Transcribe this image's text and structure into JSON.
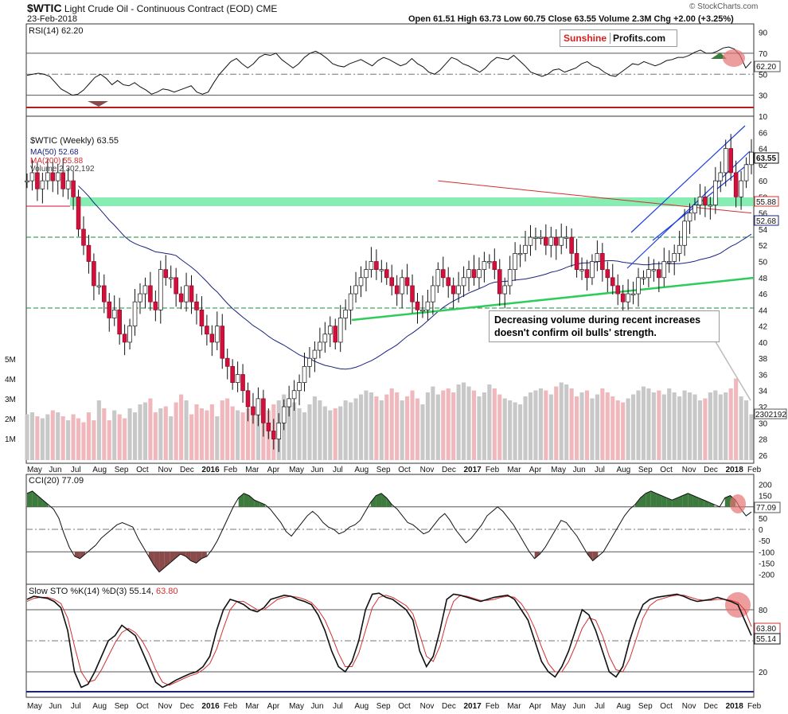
{
  "header": {
    "symbol": "$WTIC",
    "name": "Light Crude Oil - Continuous Contract (EOD)",
    "exchange": "CME",
    "date": "23-Feb-2018",
    "ohlc": "Open 61.51  High 63.73  Low 60.75  Close 63.55  Volume 2.3M  Chg +2.00 (+3.25%)",
    "copyright": "© StockCharts.com"
  },
  "logo": {
    "part1": "Sunshine",
    "part2": "Profits.com"
  },
  "note": {
    "line1": "Decreasing volume during recent increases",
    "line2": "doesn't confirm oil bulls' strength."
  },
  "x_labels": [
    "May",
    "Jun",
    "Jul",
    "Aug",
    "Sep",
    "Oct",
    "Nov",
    "Dec",
    "2016",
    "Feb",
    "Mar",
    "Apr",
    "May",
    "Jun",
    "Jul",
    "Aug",
    "Sep",
    "Oct",
    "Nov",
    "Dec",
    "2017",
    "Feb",
    "Mar",
    "Apr",
    "May",
    "Jun",
    "Jul",
    "Aug",
    "Sep",
    "Oct",
    "Nov",
    "Dec",
    "2018",
    "Feb"
  ],
  "colors": {
    "up": "#ffffff",
    "down": "#d40f3c",
    "ma50": "#1a237e",
    "ma200": "#d32f2f",
    "zone": "#5fe89a",
    "channel": "#1c3fe0",
    "support": "#2ecc5a",
    "oscRed": "#e07070",
    "cciGreen": "#3d7a3d",
    "cciBrown": "#8b4a4a"
  },
  "chart_data": [
    {
      "type": "line",
      "title": "RSI(14) 62.20",
      "y_ticks": [
        90,
        70,
        50,
        30,
        10
      ],
      "ylim": [
        10,
        98
      ],
      "levels": [
        70,
        50,
        30
      ],
      "last_value_label": "62.20",
      "values": [
        49,
        50,
        51,
        50,
        48,
        42,
        36,
        33,
        30,
        31,
        35,
        41,
        47,
        50,
        46,
        40,
        44,
        40,
        39,
        42,
        38,
        35,
        31,
        33,
        36,
        35,
        33,
        35,
        37,
        39,
        33,
        31,
        33,
        42,
        50,
        56,
        62,
        65,
        60,
        56,
        60,
        66,
        69,
        68,
        70,
        64,
        60,
        56,
        60,
        66,
        70,
        72,
        69,
        65,
        60,
        58,
        57,
        60,
        62,
        64,
        61,
        58,
        63,
        66,
        64,
        61,
        58,
        60,
        65,
        60,
        57,
        52,
        50,
        54,
        60,
        66,
        64,
        60,
        58,
        55,
        52,
        56,
        62,
        66,
        65,
        64,
        68,
        63,
        58,
        52,
        50,
        48,
        50,
        54,
        55,
        52,
        54,
        56,
        60,
        62,
        58,
        56,
        52,
        49,
        48,
        52,
        56,
        60,
        59,
        62,
        60,
        58,
        60,
        63,
        64,
        66,
        66,
        68,
        71,
        73,
        70,
        70,
        72,
        75,
        76,
        74,
        68,
        56,
        62
      ]
    },
    {
      "type": "candlestick",
      "title": "$WTIC (Weekly) 63.55",
      "legend": [
        "$WTIC (Weekly) 63.55",
        "MA(50) 52.68",
        "MA(200) 55.88",
        "Volume 2,302,192"
      ],
      "y_ticks": [
        66,
        64,
        62,
        60,
        58,
        56,
        54,
        52,
        50,
        48,
        46,
        44,
        42,
        40,
        38,
        36,
        34,
        32,
        30,
        28,
        26
      ],
      "ylim": [
        25,
        68
      ],
      "last_price_label": "63.55",
      "ma200_label": "55.88",
      "ma50_label": "52.68",
      "volume_label": "2302192",
      "volume_axis": [
        "5M",
        "4M",
        "3M",
        "2M",
        "1M"
      ],
      "resistance_zone": [
        54.3,
        55.8
      ],
      "dashed_levels": [
        49.8,
        40.3
      ],
      "weekly_close": [
        60,
        61,
        59,
        60,
        61,
        60,
        61,
        59,
        60,
        58,
        54,
        52,
        50,
        47,
        47,
        45,
        43,
        44,
        41,
        40,
        42,
        45,
        46,
        47,
        45,
        44,
        49,
        48,
        48,
        46,
        45,
        47,
        45,
        44,
        42,
        41,
        40,
        42,
        38,
        37,
        35,
        36,
        34,
        32,
        31,
        33,
        30,
        29,
        28,
        30,
        32,
        33,
        34,
        35,
        37,
        38,
        39,
        40,
        41,
        42,
        40,
        43,
        44,
        46,
        47,
        48,
        49,
        50,
        49,
        49,
        48,
        47,
        46,
        48,
        47,
        45,
        44,
        44,
        45,
        47,
        49,
        48,
        47,
        46,
        47,
        48,
        49,
        48,
        49,
        50,
        50,
        49,
        46,
        47,
        49,
        51,
        51,
        52,
        53,
        53,
        53,
        52,
        53,
        52,
        53,
        53,
        51,
        49,
        49,
        48,
        50,
        51,
        49,
        48,
        47,
        46,
        45,
        46,
        46,
        48,
        48,
        49,
        49,
        48,
        50,
        50,
        51,
        52,
        55,
        56,
        57,
        58,
        57,
        57,
        60,
        61,
        64,
        61,
        58,
        60,
        62,
        63.55
      ],
      "volume": [
        2.3,
        2.4,
        2.2,
        2.1,
        2.3,
        2.5,
        2.4,
        2.2,
        2.0,
        2.3,
        2.1,
        1.9,
        2.4,
        2.0,
        3.0,
        2.6,
        2.0,
        2.5,
        2.3,
        2.1,
        2.6,
        2.4,
        2.8,
        2.9,
        3.1,
        2.4,
        2.6,
        2.7,
        2.2,
        2.9,
        3.3,
        3.0,
        2.3,
        2.8,
        2.6,
        2.5,
        2.8,
        2.2,
        3.0,
        3.1,
        2.7,
        2.5,
        2.4,
        2.6,
        2.7,
        2.3,
        2.2,
        2.5,
        2.8,
        3.0,
        3.3,
        3.1,
        2.9,
        2.6,
        2.4,
        2.8,
        3.2,
        3.0,
        2.7,
        2.5,
        2.6,
        2.7,
        3.0,
        2.9,
        3.1,
        3.3,
        3.5,
        3.4,
        3.2,
        3.0,
        3.3,
        3.6,
        3.4,
        3.0,
        3.2,
        3.5,
        3.1,
        2.8,
        3.4,
        3.7,
        3.3,
        3.5,
        3.6,
        3.4,
        3.8,
        3.9,
        3.7,
        3.5,
        3.2,
        3.4,
        3.8,
        3.6,
        3.3,
        3.1,
        3.0,
        2.9,
        2.8,
        3.2,
        3.4,
        3.5,
        3.6,
        3.5,
        3.3,
        3.7,
        3.9,
        3.8,
        3.6,
        3.2,
        3.4,
        3.5,
        3.1,
        3.3,
        3.6,
        3.4,
        3.2,
        3.0,
        2.9,
        3.1,
        3.3,
        3.5,
        3.7,
        3.6,
        3.4,
        3.5,
        3.3,
        3.6,
        3.4,
        3.2,
        3.5,
        3.4,
        3.3,
        3.0,
        3.1,
        3.4,
        3.5,
        3.3,
        3.4,
        3.6,
        4.1,
        3.2,
        3.0,
        2.3
      ]
    },
    {
      "type": "line",
      "title": "CCI(20) 77.09",
      "y_ticks": [
        200,
        150,
        100,
        50,
        0,
        -50,
        -100,
        -150,
        -200
      ],
      "ylim": [
        -230,
        230
      ],
      "levels": [
        100,
        0,
        -100
      ],
      "last_value_label": "77.09",
      "values": [
        160,
        170,
        150,
        130,
        110,
        90,
        50,
        -20,
        -80,
        -120,
        -130,
        -110,
        -90,
        -70,
        -40,
        -20,
        0,
        20,
        30,
        20,
        10,
        -40,
        -80,
        -120,
        -160,
        -190,
        -170,
        -150,
        -130,
        -110,
        -120,
        -140,
        -150,
        -130,
        -120,
        -90,
        -50,
        0,
        50,
        100,
        140,
        160,
        150,
        130,
        120,
        110,
        90,
        60,
        30,
        -10,
        -30,
        0,
        30,
        60,
        80,
        60,
        30,
        10,
        0,
        -20,
        -10,
        10,
        20,
        40,
        80,
        120,
        150,
        160,
        140,
        110,
        90,
        60,
        30,
        20,
        0,
        -20,
        -10,
        20,
        50,
        70,
        40,
        0,
        -30,
        -60,
        -40,
        -10,
        20,
        60,
        80,
        100,
        80,
        50,
        20,
        -20,
        -60,
        -100,
        -130,
        -110,
        -80,
        -40,
        0,
        40,
        30,
        0,
        -30,
        -70,
        -110,
        -140,
        -120,
        -100,
        -60,
        -20,
        20,
        60,
        90,
        110,
        140,
        160,
        170,
        160,
        150,
        140,
        130,
        140,
        150,
        160,
        150,
        140,
        130,
        120,
        110,
        100,
        140,
        150,
        130,
        90,
        60,
        77.09
      ]
    },
    {
      "type": "line",
      "title": "Slow STO %K(14) %D(3) 55.14, 63.80",
      "y_ticks": [
        80,
        50,
        20
      ],
      "ylim": [
        0,
        100
      ],
      "levels": [
        80,
        50,
        20
      ],
      "k_label": "55.14",
      "d_label": "63.80",
      "series": [
        {
          "name": "%K(14)",
          "values": [
            90,
            93,
            92,
            91,
            88,
            82,
            60,
            20,
            5,
            8,
            20,
            35,
            50,
            55,
            65,
            60,
            55,
            40,
            25,
            10,
            5,
            8,
            12,
            15,
            18,
            20,
            25,
            35,
            60,
            80,
            90,
            88,
            85,
            80,
            78,
            82,
            90,
            92,
            94,
            93,
            90,
            88,
            85,
            75,
            60,
            40,
            25,
            20,
            30,
            50,
            80,
            95,
            96,
            92,
            90,
            85,
            80,
            70,
            40,
            25,
            35,
            60,
            90,
            95,
            94,
            92,
            90,
            88,
            90,
            92,
            93,
            94,
            90,
            80,
            70,
            50,
            30,
            20,
            15,
            25,
            40,
            60,
            80,
            75,
            60,
            40,
            20,
            15,
            25,
            50,
            70,
            85,
            90,
            92,
            93,
            94,
            95,
            93,
            90,
            88,
            89,
            90,
            92,
            90,
            88,
            85,
            70,
            55.14
          ]
        },
        {
          "name": "%D(3)",
          "values": [
            88,
            91,
            92,
            92,
            90,
            86,
            72,
            45,
            20,
            10,
            12,
            22,
            35,
            48,
            58,
            62,
            58,
            50,
            38,
            22,
            10,
            7,
            10,
            13,
            16,
            18,
            22,
            28,
            42,
            62,
            80,
            88,
            88,
            84,
            80,
            80,
            85,
            90,
            92,
            93,
            92,
            90,
            87,
            80,
            70,
            55,
            38,
            25,
            25,
            38,
            60,
            82,
            92,
            94,
            92,
            88,
            84,
            76,
            56,
            35,
            30,
            45,
            70,
            88,
            94,
            93,
            91,
            89,
            89,
            90,
            92,
            93,
            92,
            86,
            76,
            62,
            44,
            28,
            20,
            20,
            30,
            45,
            62,
            72,
            70,
            55,
            35,
            22,
            20,
            32,
            52,
            72,
            84,
            89,
            91,
            93,
            94,
            94,
            92,
            90,
            89,
            89,
            90,
            90,
            89,
            87,
            80,
            63.8
          ]
        }
      ]
    }
  ]
}
